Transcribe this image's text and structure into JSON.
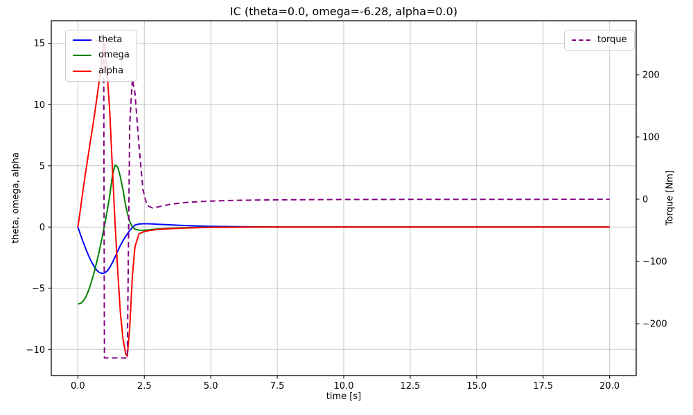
{
  "chart_data": {
    "type": "line",
    "title": "IC (theta=0.0, omega=-6.28, alpha=0.0)",
    "xlabel": "time [s]",
    "ylabel_left": "theta, omega, alpha",
    "ylabel_right": "Torque [Nm]",
    "grid": true,
    "xlim": [
      -1,
      21
    ],
    "ylim_left": [
      -12.13,
      16.85
    ],
    "ylim_right": [
      -283.3,
      286.7
    ],
    "xticks": {
      "values": [
        0,
        2.5,
        5,
        7.5,
        10,
        12.5,
        15,
        17.5,
        20
      ],
      "labels": [
        "0.0",
        "2.5",
        "5.0",
        "7.5",
        "10.0",
        "12.5",
        "15.0",
        "17.5",
        "20.0"
      ]
    },
    "yticks_left": {
      "values": [
        15,
        10,
        5,
        0,
        -5,
        -10
      ],
      "labels": [
        "15",
        "10",
        "5",
        "0",
        "−5",
        "−10"
      ]
    },
    "yticks_right": {
      "values": [
        200,
        100,
        0,
        -100,
        -200
      ],
      "labels": [
        "200",
        "100",
        "0",
        "−100",
        "−200"
      ]
    },
    "legend_left": {
      "position": "upper left",
      "entries": [
        {
          "label": "theta",
          "color": "#0000ff",
          "dashed": false
        },
        {
          "label": "omega",
          "color": "#008000",
          "dashed": false
        },
        {
          "label": "alpha",
          "color": "#ff0000",
          "dashed": false
        }
      ]
    },
    "legend_right": {
      "position": "upper right",
      "entries": [
        {
          "label": "torque",
          "color": "#800080",
          "dashed": true
        }
      ]
    },
    "x": [
      0,
      0.1,
      0.2,
      0.3,
      0.4,
      0.5,
      0.6,
      0.7,
      0.8,
      0.9,
      0.97,
      1.0,
      1.1,
      1.2,
      1.3,
      1.4,
      1.5,
      1.6,
      1.7,
      1.8,
      1.86,
      1.95,
      2.05,
      2.15,
      2.3,
      2.45,
      2.6,
      2.8,
      3.0,
      3.5,
      4.0,
      4.5,
      5.0,
      6.0,
      7.0,
      8.0,
      10.0,
      12.0,
      15.0,
      17.5,
      20.0
    ],
    "series": [
      {
        "name": "theta",
        "axis": "left",
        "color": "#0000ff",
        "style": "solid",
        "values": [
          0,
          -0.62,
          -1.22,
          -1.8,
          -2.32,
          -2.78,
          -3.18,
          -3.5,
          -3.7,
          -3.78,
          -3.77,
          -3.75,
          -3.6,
          -3.3,
          -2.9,
          -2.45,
          -1.95,
          -1.5,
          -1.1,
          -0.75,
          -0.57,
          -0.28,
          -0.02,
          0.16,
          0.25,
          0.27,
          0.27,
          0.26,
          0.23,
          0.18,
          0.13,
          0.09,
          0.06,
          0.03,
          0.015,
          0.007,
          0.002,
          0,
          0,
          0,
          0
        ]
      },
      {
        "name": "omega",
        "axis": "left",
        "color": "#008000",
        "style": "solid",
        "values": [
          -6.28,
          -6.25,
          -6.05,
          -5.7,
          -5.2,
          -4.55,
          -3.8,
          -2.95,
          -2.0,
          -1.0,
          -0.2,
          0.1,
          1.3,
          2.6,
          4.2,
          5.08,
          4.9,
          4.1,
          3.0,
          1.75,
          1.15,
          0.45,
          0.03,
          -0.18,
          -0.25,
          -0.26,
          -0.24,
          -0.2,
          -0.16,
          -0.1,
          -0.06,
          -0.03,
          -0.015,
          -0.005,
          0,
          0,
          0,
          0,
          0,
          0,
          0
        ]
      },
      {
        "name": "alpha",
        "axis": "left",
        "color": "#ff0000",
        "style": "solid",
        "values": [
          0,
          1.5,
          3.1,
          4.6,
          6.0,
          7.4,
          8.8,
          10.3,
          11.9,
          13.6,
          15.1,
          14.9,
          12.6,
          9.4,
          4.8,
          0.2,
          -3.6,
          -7.0,
          -9.2,
          -10.35,
          -10.55,
          -8.2,
          -4.0,
          -1.6,
          -0.55,
          -0.4,
          -0.32,
          -0.25,
          -0.2,
          -0.13,
          -0.08,
          -0.05,
          -0.03,
          -0.01,
          0,
          0,
          0,
          0,
          0,
          0,
          0
        ]
      },
      {
        "name": "torque",
        "axis": "right",
        "color": "#800080",
        "style": "dashed",
        "values": [
          255,
          255,
          255,
          255,
          255,
          255,
          255,
          255,
          255,
          255,
          255,
          -255,
          -255,
          -255,
          -255,
          -255,
          -255,
          -255,
          -255,
          -255,
          -255,
          120,
          193,
          170,
          85,
          15,
          -10,
          -14,
          -12.5,
          -8,
          -5.5,
          -4,
          -3,
          -1.8,
          -1.2,
          -0.8,
          -0.45,
          -0.3,
          -0.2,
          -0.15,
          -0.1
        ]
      }
    ]
  }
}
